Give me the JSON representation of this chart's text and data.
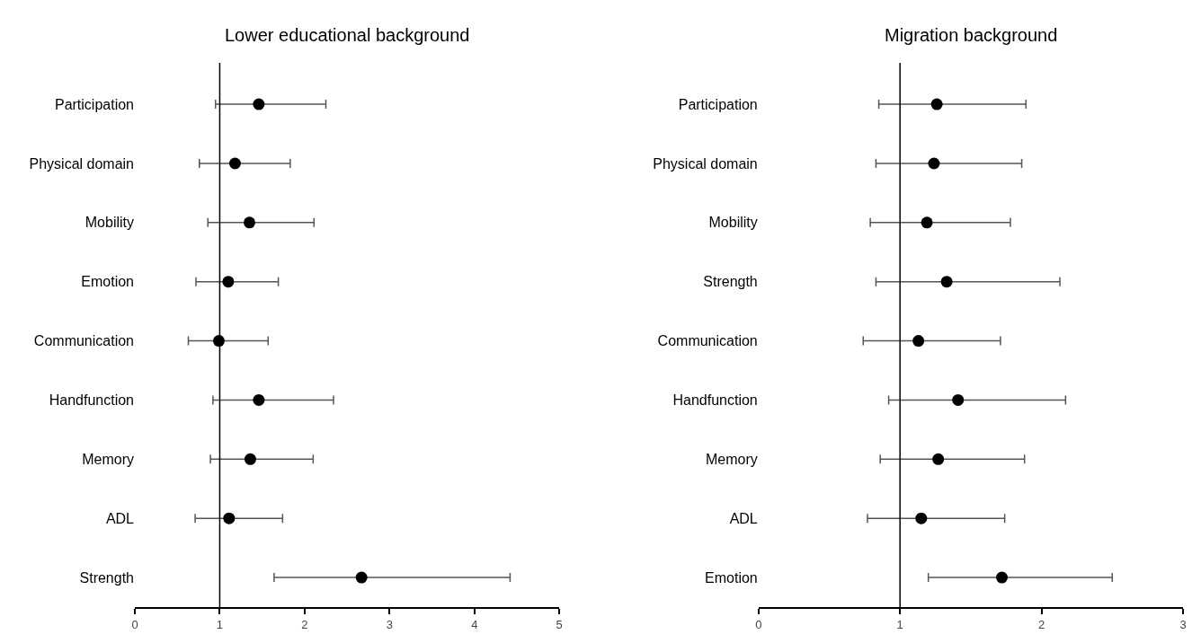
{
  "chart_data": [
    {
      "type": "scatter",
      "orientation": "horizontal",
      "title": "Lower educational background",
      "categories": [
        "Participation",
        "Physical domain",
        "Mobility",
        "Emotion",
        "Communication",
        "Handfunction",
        "Memory",
        "ADL",
        "Strength"
      ],
      "series": [
        {
          "color": "#000000",
          "values": [
            1.46,
            1.18,
            1.35,
            1.1,
            0.99,
            1.46,
            1.36,
            1.11,
            2.67
          ],
          "errors": [
            [
              0.95,
              2.25
            ],
            [
              0.76,
              1.83
            ],
            [
              0.86,
              2.11
            ],
            [
              0.72,
              1.69
            ],
            [
              0.63,
              1.57
            ],
            [
              0.92,
              2.34
            ],
            [
              0.89,
              2.1
            ],
            [
              0.71,
              1.74
            ],
            [
              1.64,
              4.42
            ]
          ]
        }
      ],
      "xlim": [
        0,
        5
      ],
      "xticks": [
        0,
        1,
        2,
        3,
        4,
        5
      ],
      "ref_lines": [
        {
          "axis": "x",
          "value": 1,
          "color": "#000000"
        }
      ],
      "marker": "circle"
    },
    {
      "type": "scatter",
      "orientation": "horizontal",
      "title": "Migration background",
      "categories": [
        "Participation",
        "Physical domain",
        "Mobility",
        "Strength",
        "Communication",
        "Handfunction",
        "Memory",
        "ADL",
        "Emotion"
      ],
      "series": [
        {
          "color": "#000000",
          "values": [
            1.26,
            1.24,
            1.19,
            1.33,
            1.13,
            1.41,
            1.27,
            1.15,
            1.72
          ],
          "errors": [
            [
              0.85,
              1.89
            ],
            [
              0.83,
              1.86
            ],
            [
              0.79,
              1.78
            ],
            [
              0.83,
              2.13
            ],
            [
              0.74,
              1.71
            ],
            [
              0.92,
              2.17
            ],
            [
              0.86,
              1.88
            ],
            [
              0.77,
              1.74
            ],
            [
              1.2,
              2.5
            ]
          ]
        }
      ],
      "xlim": [
        0,
        3
      ],
      "xticks": [
        0,
        1,
        2,
        3
      ],
      "ref_lines": [
        {
          "axis": "x",
          "value": 1,
          "color": "#000000"
        }
      ],
      "marker": "circle"
    }
  ]
}
